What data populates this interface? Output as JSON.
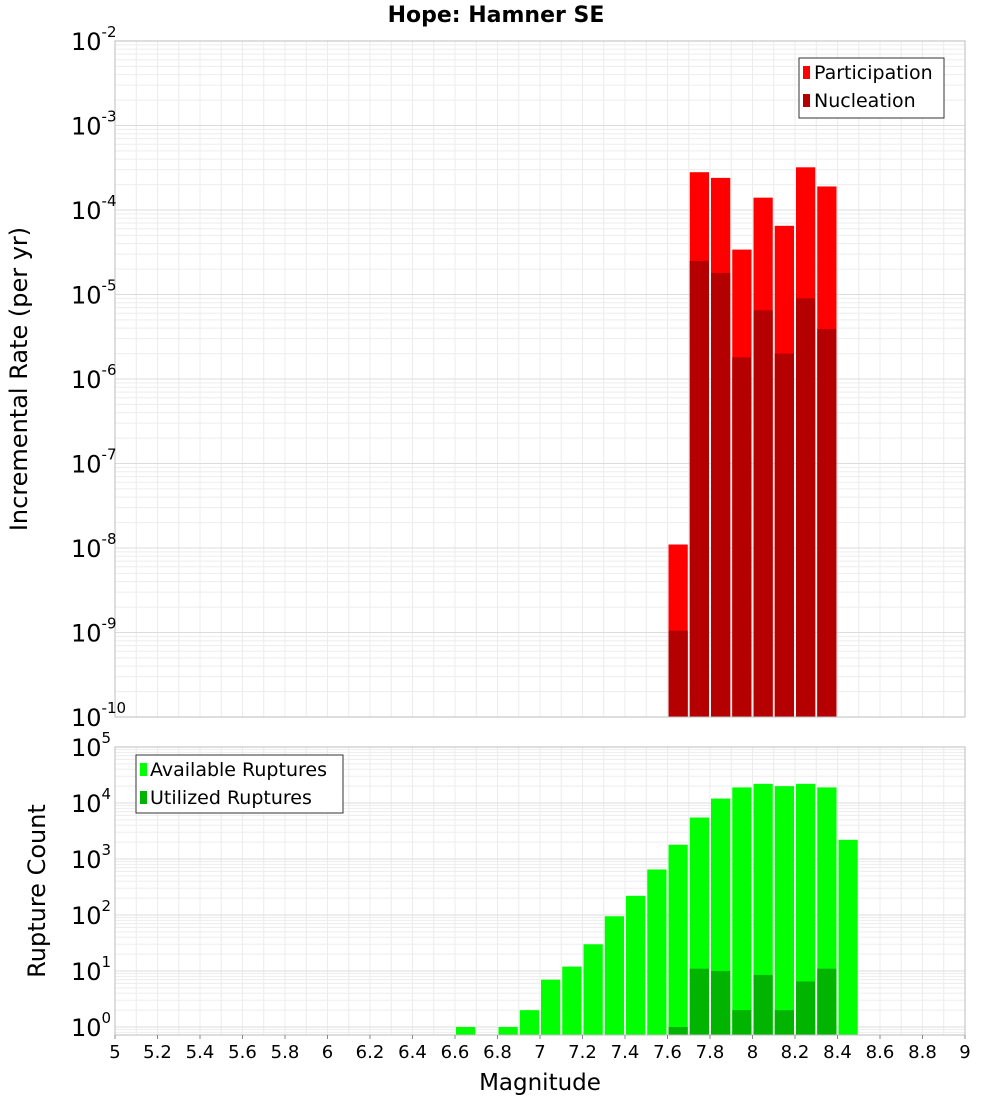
{
  "chart_data": [
    {
      "type": "bar",
      "title": "Hope: Hamner SE",
      "xlabel": "",
      "ylabel": "Incremental Rate (per yr)",
      "y_scale": "log",
      "ylim": [
        1e-10,
        0.01
      ],
      "xlim": [
        5,
        9
      ],
      "yticks": [
        {
          "base": "10",
          "exp": "-10"
        },
        {
          "base": "10",
          "exp": "-9"
        },
        {
          "base": "10",
          "exp": "-8"
        },
        {
          "base": "10",
          "exp": "-7"
        },
        {
          "base": "10",
          "exp": "-6"
        },
        {
          "base": "10",
          "exp": "-5"
        },
        {
          "base": "10",
          "exp": "-4"
        },
        {
          "base": "10",
          "exp": "-3"
        },
        {
          "base": "10",
          "exp": "-2"
        }
      ],
      "bar_width": 0.1,
      "legend_position": "top-right",
      "grid": true,
      "series": [
        {
          "name": "Participation",
          "color": "#ff0000",
          "x": [
            7.65,
            7.75,
            7.85,
            7.95,
            8.05,
            8.15,
            8.25,
            8.35
          ],
          "values": [
            1.1e-08,
            0.00028,
            0.00024,
            3.4e-05,
            0.00014,
            6.5e-05,
            0.00032,
            0.00019
          ]
        },
        {
          "name": "Nucleation",
          "color": "#b40000",
          "x": [
            7.65,
            7.75,
            7.85,
            7.95,
            8.05,
            8.15,
            8.25,
            8.35
          ],
          "values": [
            1.05e-09,
            2.5e-05,
            1.8e-05,
            1.8e-06,
            6.5e-06,
            2e-06,
            9e-06,
            3.9e-06
          ]
        }
      ]
    },
    {
      "type": "bar",
      "title": "",
      "xlabel": "Magnitude",
      "ylabel": "Rupture Count",
      "y_scale": "log",
      "ylim": [
        0.8,
        100000.0
      ],
      "xlim": [
        5,
        9
      ],
      "xticks": [
        "5",
        "5.2",
        "5.4",
        "5.6",
        "5.8",
        "6",
        "6.2",
        "6.4",
        "6.6",
        "6.8",
        "7",
        "7.2",
        "7.4",
        "7.6",
        "7.8",
        "8",
        "8.2",
        "8.4",
        "8.6",
        "8.8",
        "9"
      ],
      "yticks": [
        {
          "base": "10",
          "exp": "0"
        },
        {
          "base": "10",
          "exp": "1"
        },
        {
          "base": "10",
          "exp": "2"
        },
        {
          "base": "10",
          "exp": "3"
        },
        {
          "base": "10",
          "exp": "4"
        },
        {
          "base": "10",
          "exp": "5"
        }
      ],
      "bar_width": 0.1,
      "legend_position": "top-left",
      "grid": true,
      "series": [
        {
          "name": "Available Ruptures",
          "color": "#00ff00",
          "x": [
            6.65,
            6.85,
            6.95,
            7.05,
            7.15,
            7.25,
            7.35,
            7.45,
            7.55,
            7.65,
            7.75,
            7.85,
            7.95,
            8.05,
            8.15,
            8.25,
            8.35,
            8.45
          ],
          "values": [
            1,
            1,
            2,
            7,
            12,
            30,
            95,
            220,
            650,
            1800,
            5500,
            12000,
            19000,
            22000,
            20000,
            22000,
            19000,
            2200
          ]
        },
        {
          "name": "Utilized Ruptures",
          "color": "#00b400",
          "x": [
            7.65,
            7.75,
            7.85,
            7.95,
            8.05,
            8.15,
            8.25,
            8.35
          ],
          "values": [
            1,
            11,
            10,
            2,
            8.5,
            2,
            6.5,
            11
          ]
        }
      ]
    }
  ]
}
